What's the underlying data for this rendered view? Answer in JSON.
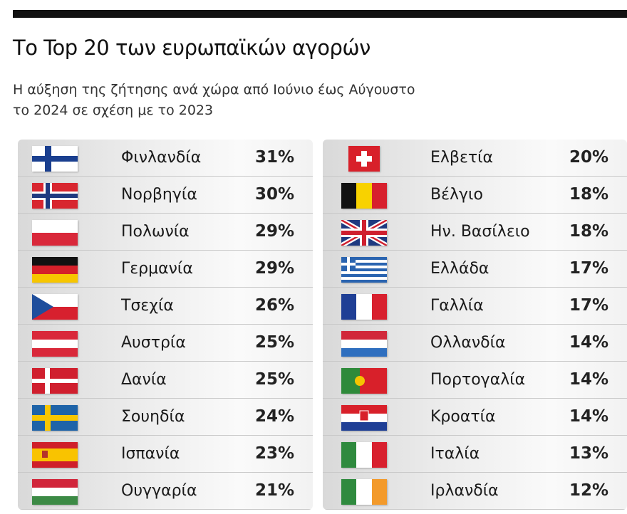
{
  "title": "Το Top 20 των ευρωπαϊκών αγορών",
  "subtitle_line1": "Η αύξηση της ζήτησης ανά χώρα από Ιούνιο έως Αύγουστο",
  "subtitle_line2": "το 2024 σε σχέση με το 2023",
  "left": [
    {
      "name": "Φινλανδία",
      "value": "31%",
      "flag": "finland-flag-icon"
    },
    {
      "name": "Νορβηγία",
      "value": "30%",
      "flag": "norway-flag-icon"
    },
    {
      "name": "Πολωνία",
      "value": "29%",
      "flag": "poland-flag-icon"
    },
    {
      "name": "Γερμανία",
      "value": "29%",
      "flag": "germany-flag-icon"
    },
    {
      "name": "Τσεχία",
      "value": "26%",
      "flag": "czechia-flag-icon"
    },
    {
      "name": "Αυστρία",
      "value": "25%",
      "flag": "austria-flag-icon"
    },
    {
      "name": "Δανία",
      "value": "25%",
      "flag": "denmark-flag-icon"
    },
    {
      "name": "Σουηδία",
      "value": "24%",
      "flag": "sweden-flag-icon"
    },
    {
      "name": "Ισπανία",
      "value": "23%",
      "flag": "spain-flag-icon"
    },
    {
      "name": "Ουγγαρία",
      "value": "21%",
      "flag": "hungary-flag-icon"
    }
  ],
  "right": [
    {
      "name": "Ελβετία",
      "value": "20%",
      "flag": "switzerland-flag-icon"
    },
    {
      "name": "Βέλγιο",
      "value": "18%",
      "flag": "belgium-flag-icon"
    },
    {
      "name": "Ην. Βασίλειο",
      "value": "18%",
      "flag": "uk-flag-icon"
    },
    {
      "name": "Ελλάδα",
      "value": "17%",
      "flag": "greece-flag-icon"
    },
    {
      "name": "Γαλλία",
      "value": "17%",
      "flag": "france-flag-icon"
    },
    {
      "name": "Ολλανδία",
      "value": "14%",
      "flag": "netherlands-flag-icon"
    },
    {
      "name": "Πορτογαλία",
      "value": "14%",
      "flag": "portugal-flag-icon"
    },
    {
      "name": "Κροατία",
      "value": "14%",
      "flag": "croatia-flag-icon"
    },
    {
      "name": "Ιταλία",
      "value": "13%",
      "flag": "italy-flag-icon"
    },
    {
      "name": "Ιρλανδία",
      "value": "12%",
      "flag": "ireland-flag-icon"
    }
  ]
}
